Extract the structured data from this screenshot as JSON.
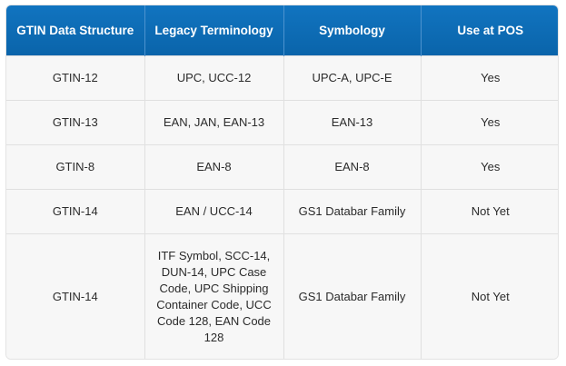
{
  "headers": [
    "GTIN Data Structure",
    "Legacy Terminology",
    "Symbology",
    "Use at POS"
  ],
  "rows": [
    [
      "GTIN-12",
      "UPC, UCC-12",
      "UPC-A, UPC-E",
      "Yes"
    ],
    [
      "GTIN-13",
      "EAN, JAN, EAN-13",
      "EAN-13",
      "Yes"
    ],
    [
      "GTIN-8",
      "EAN-8",
      "EAN-8",
      "Yes"
    ],
    [
      "GTIN-14",
      "EAN / UCC-14",
      "GS1 Databar Family",
      "Not Yet"
    ],
    [
      "GTIN-14",
      "ITF Symbol, SCC-14, DUN-14, UPC Case Code, UPC Shipping Container Code, UCC Code 128, EAN Code 128",
      "GS1 Databar Family",
      "Not Yet"
    ]
  ],
  "colors": {
    "header_bg": "#0a64aa",
    "header_text": "#ffffff",
    "row_bg": "#f7f7f7",
    "border": "#e0e0e0"
  }
}
